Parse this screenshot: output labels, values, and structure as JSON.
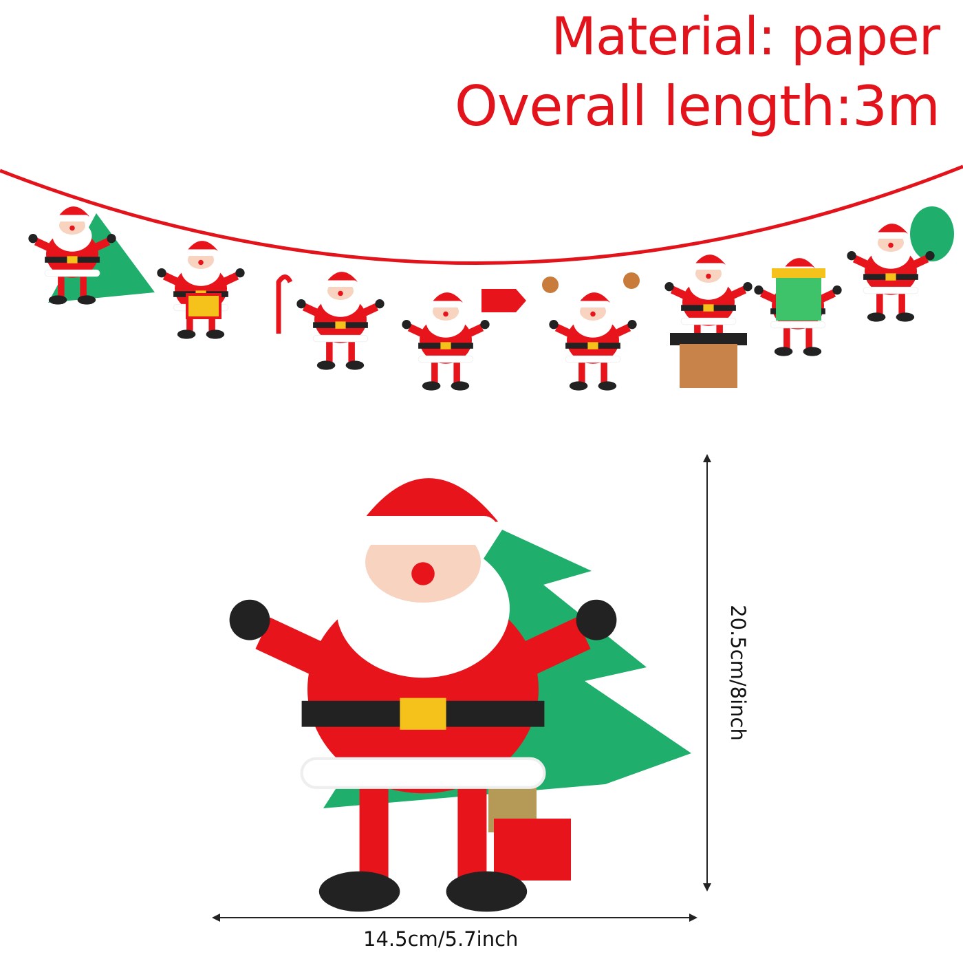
{
  "headline": {
    "material": "Material: paper",
    "length": "Overall length:3m"
  },
  "dimensions": {
    "height": "20.5cm/8inch",
    "width": "14.5cm/5.7inch"
  },
  "colors": {
    "accent_red": "#e3131b",
    "santa_red": "#e8141c",
    "tree_green": "#1fae6b",
    "belt_gold": "#f4c21b"
  },
  "garland": {
    "figure_count": 8
  }
}
